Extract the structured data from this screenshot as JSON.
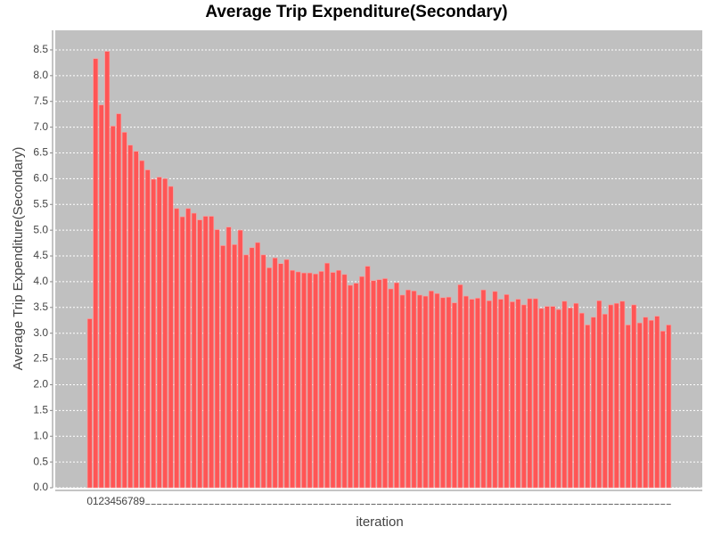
{
  "chart_data": {
    "type": "bar",
    "title": "Average Trip Expenditure(Secondary)",
    "x_label": "iteration",
    "y_label": "Average Trip Expenditure(Secondary)",
    "categories": [
      "0",
      "1",
      "2",
      "3",
      "4",
      "5",
      "6",
      "7",
      "8",
      "9",
      null,
      null,
      null,
      null,
      null,
      null,
      null,
      null,
      null,
      null,
      null,
      null,
      null,
      null,
      null,
      null,
      null,
      null,
      null,
      null,
      null,
      null,
      null,
      null,
      null,
      null,
      null,
      null,
      null,
      null,
      null,
      null,
      null,
      null,
      null,
      null,
      null,
      null,
      null,
      null,
      null,
      null,
      null,
      null,
      null,
      null,
      null,
      null,
      null,
      null,
      null,
      null,
      null,
      null,
      null,
      null,
      null,
      null,
      null,
      null,
      null,
      null,
      null,
      null,
      null,
      null,
      null,
      null,
      null,
      null,
      null,
      null,
      null,
      null,
      null,
      null,
      null,
      null,
      null,
      null,
      null,
      null,
      null,
      null,
      null,
      null,
      null,
      null,
      null,
      null,
      null
    ],
    "values": [
      3.28,
      8.33,
      7.43,
      8.47,
      7.02,
      7.26,
      6.9,
      6.65,
      6.53,
      6.35,
      6.17,
      5.99,
      6.03,
      6.0,
      5.85,
      5.42,
      5.26,
      5.42,
      5.33,
      5.2,
      5.27,
      5.27,
      5.01,
      4.7,
      5.06,
      4.72,
      5.0,
      4.52,
      4.66,
      4.76,
      4.52,
      4.27,
      4.46,
      4.35,
      4.43,
      4.22,
      4.19,
      4.17,
      4.17,
      4.15,
      4.2,
      4.36,
      4.18,
      4.22,
      4.14,
      3.93,
      3.97,
      4.1,
      4.3,
      4.02,
      4.04,
      4.06,
      3.86,
      3.98,
      3.74,
      3.84,
      3.82,
      3.74,
      3.72,
      3.82,
      3.77,
      3.69,
      3.7,
      3.59,
      3.94,
      3.72,
      3.66,
      3.68,
      3.84,
      3.63,
      3.81,
      3.66,
      3.75,
      3.61,
      3.66,
      3.55,
      3.67,
      3.67,
      3.48,
      3.52,
      3.52,
      3.46,
      3.62,
      3.49,
      3.58,
      3.39,
      3.16,
      3.31,
      3.63,
      3.37,
      3.55,
      3.58,
      3.62,
      3.16,
      3.55,
      3.2,
      3.31,
      3.25,
      3.33,
      3.04,
      3.16
    ],
    "color": "#ff5555",
    "ylim": [
      0,
      8.88
    ],
    "yticks": [
      {
        "value": 0,
        "label": "0.0"
      },
      0.5,
      {
        "value": 1,
        "label": "1.0"
      },
      1.5,
      {
        "value": 2,
        "label": "2.0"
      },
      2.5,
      {
        "value": 3,
        "label": "3.0"
      },
      3.5,
      {
        "value": 4,
        "label": "4.0"
      },
      4.5,
      {
        "value": 5,
        "label": "5.0"
      },
      5.5,
      {
        "value": 6,
        "label": "6.0"
      },
      6.5,
      {
        "value": 7,
        "label": "7.0"
      },
      7.5,
      {
        "value": 8,
        "label": "8.0"
      },
      8.5
    ],
    "grid": true
  }
}
